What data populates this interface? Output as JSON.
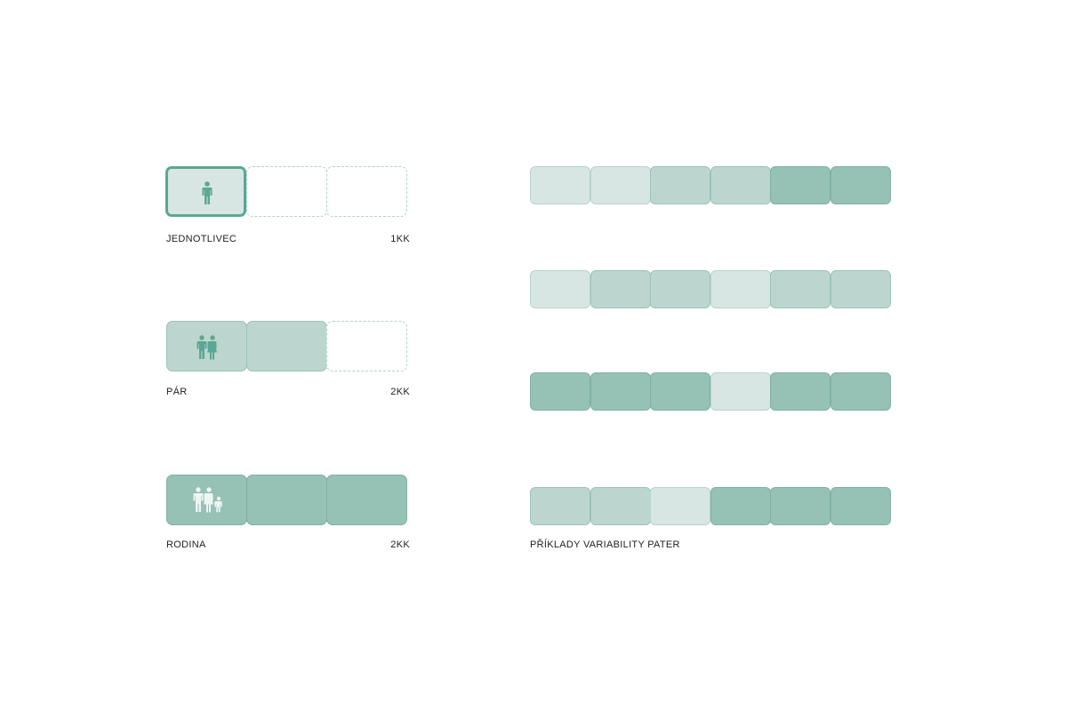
{
  "colors": {
    "light": "#d7e6e2",
    "medium": "#bcd6cf",
    "dark": "#96c1b5",
    "accent": "#5aa793",
    "icon_dark": "#5aa793",
    "icon_white": "#eef5f3"
  },
  "household_types": [
    {
      "label": "JEDNOTLIVEC",
      "layout": "1KK",
      "icon": "single-person-icon",
      "cells": [
        "selected",
        "empty",
        "empty"
      ]
    },
    {
      "label": "PÁR",
      "layout": "2KK",
      "icon": "couple-icon",
      "cells": [
        "medium",
        "medium",
        "empty"
      ]
    },
    {
      "label": "RODINA",
      "layout": "2KK",
      "icon": "family-icon",
      "cells": [
        "dark",
        "dark",
        "dark"
      ]
    }
  ],
  "variability": {
    "caption": "PŘÍKLADY VARIABILITY PATER",
    "rows": [
      [
        "light",
        "light",
        "medium",
        "medium",
        "dark",
        "dark"
      ],
      [
        "light",
        "medium",
        "medium",
        "light",
        "medium",
        "medium"
      ],
      [
        "dark",
        "dark",
        "dark",
        "light",
        "dark",
        "dark"
      ],
      [
        "medium",
        "medium",
        "light",
        "dark",
        "dark",
        "dark"
      ]
    ]
  }
}
